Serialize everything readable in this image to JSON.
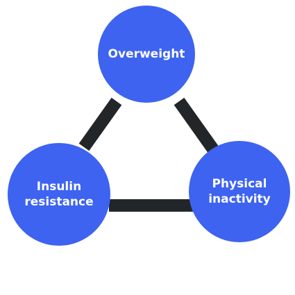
{
  "diagram": {
    "nodes": [
      {
        "id": "top",
        "label": "Overweight"
      },
      {
        "id": "left",
        "label": "Insulin\nresistance"
      },
      {
        "id": "right",
        "label": "Physical\ninactivity"
      }
    ],
    "connections": [
      {
        "from": "top",
        "to": "left"
      },
      {
        "from": "top",
        "to": "right"
      },
      {
        "from": "left",
        "to": "right"
      }
    ]
  },
  "colors": {
    "node_fill": "#3d63f0",
    "node_text": "#ffffff",
    "connector": "#222628",
    "background": "#ffffff"
  }
}
